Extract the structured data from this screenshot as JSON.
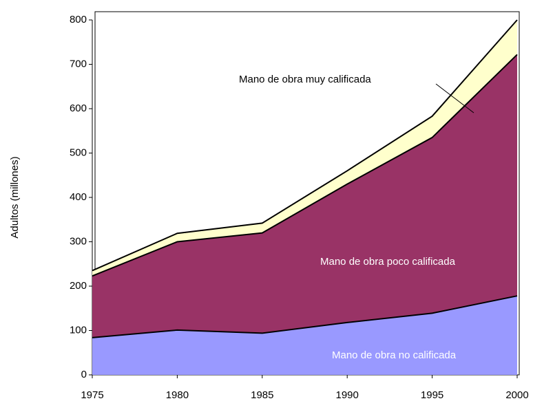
{
  "chart_data": {
    "type": "stacked_area",
    "ylabel": "Adultos (millones)",
    "x": [
      1975,
      1980,
      1985,
      1990,
      1995,
      2000
    ],
    "xlim": [
      1975,
      2000
    ],
    "xticks": [
      1975,
      1980,
      1985,
      1990,
      1995,
      2000
    ],
    "ylim": [
      0,
      800
    ],
    "yticks": [
      0,
      100,
      200,
      300,
      400,
      500,
      600,
      700,
      800
    ],
    "series": [
      {
        "name": "Mano de obra no calificada",
        "color": "#9999ff",
        "values": [
          84,
          101,
          94,
          118,
          139,
          178
        ]
      },
      {
        "name": "Mano de obra poco calificada",
        "color": "#993366",
        "values": [
          139,
          199,
          226,
          312,
          396,
          544
        ]
      },
      {
        "name": "Mano de obra muy calificada",
        "color": "#ffffcc",
        "values": [
          12,
          19,
          22,
          30,
          48,
          78
        ]
      }
    ]
  }
}
